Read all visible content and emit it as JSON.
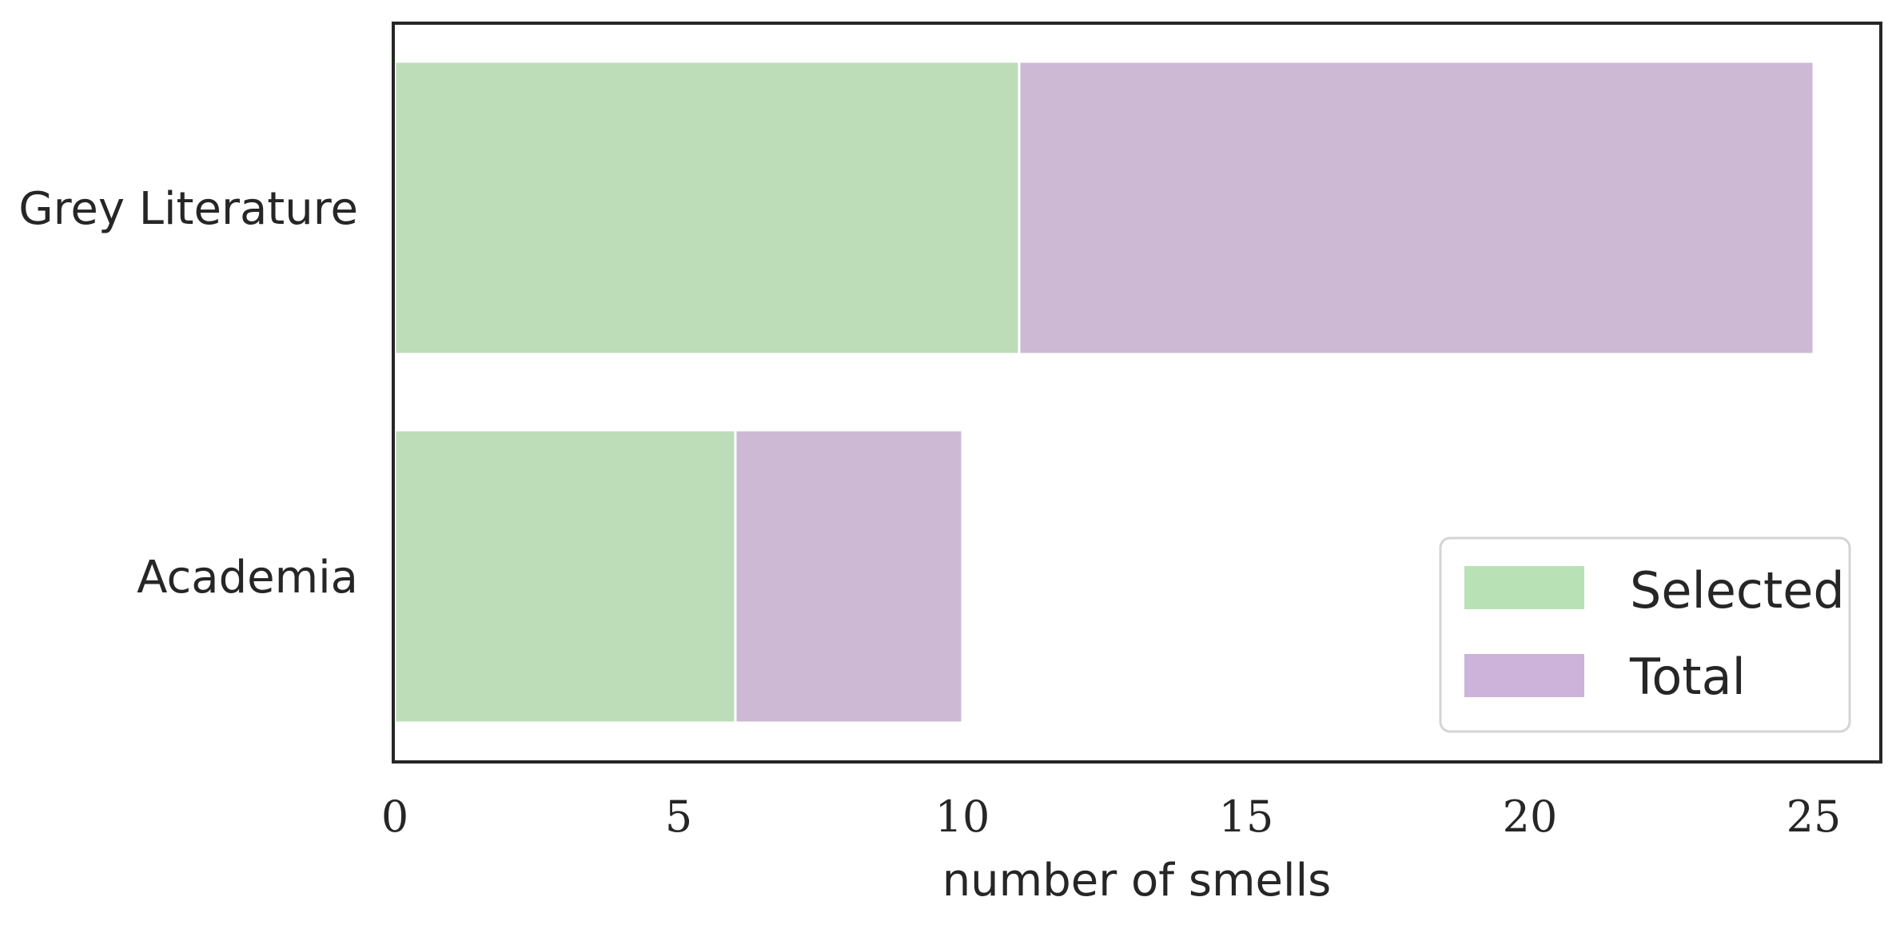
{
  "chart_data": {
    "type": "bar",
    "orientation": "horizontal",
    "stacked": true,
    "categories": [
      "Grey Literature",
      "Academia"
    ],
    "series": [
      {
        "name": "Selected",
        "values": [
          11,
          6
        ],
        "color": "#bddcb8"
      },
      {
        "name": "Total",
        "values": [
          14,
          4
        ],
        "color": "#cdb9d4"
      }
    ],
    "xlabel": "number of smells",
    "ylabel": "",
    "xlim": [
      0,
      26.3
    ],
    "xticks": [
      0,
      5,
      10,
      15,
      20,
      25
    ],
    "grid": false,
    "legend": {
      "position": "lower right",
      "swatch_colors": [
        "#b8e2b5",
        "#cdb2d9"
      ]
    }
  }
}
